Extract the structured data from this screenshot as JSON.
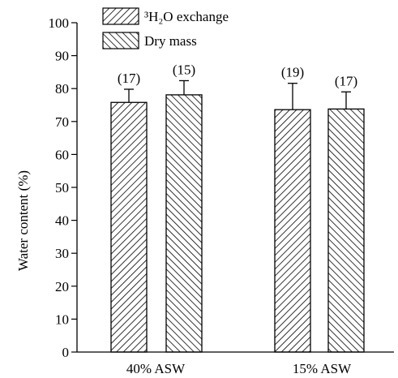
{
  "chart_data": {
    "type": "bar",
    "title": "",
    "xlabel": "",
    "ylabel": "Water content (%)",
    "ylim": [
      0,
      100
    ],
    "yticks": [
      0,
      10,
      20,
      30,
      40,
      50,
      60,
      70,
      80,
      90,
      100
    ],
    "grid": false,
    "legend_position": "top-left",
    "categories": [
      "40% ASW",
      "15% ASW"
    ],
    "series": [
      {
        "name": "³H₂O exchange",
        "pattern": "hatch-forward",
        "values": [
          75.8,
          73.6
        ],
        "errors": [
          4.0,
          8.0
        ],
        "n_labels": [
          "(17)",
          "(19)"
        ]
      },
      {
        "name": "Dry mass",
        "pattern": "hatch-back",
        "values": [
          78.1,
          73.8
        ],
        "errors": [
          4.3,
          5.2
        ],
        "n_labels": [
          "(15)",
          "(17)"
        ]
      }
    ],
    "colors": {
      "ink": "#000000",
      "background": "#ffffff"
    }
  }
}
